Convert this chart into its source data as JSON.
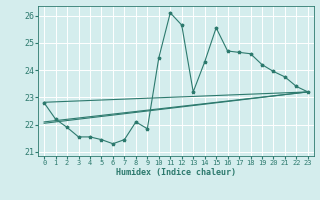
{
  "title": "",
  "xlabel": "Humidex (Indice chaleur)",
  "ylabel": "",
  "bg_color": "#d4eded",
  "grid_color": "#b8d8d8",
  "line_color": "#2d7a6e",
  "xlim": [
    -0.5,
    23.5
  ],
  "ylim": [
    20.85,
    26.35
  ],
  "yticks": [
    21,
    22,
    23,
    24,
    25,
    26
  ],
  "xticks": [
    0,
    1,
    2,
    3,
    4,
    5,
    6,
    7,
    8,
    9,
    10,
    11,
    12,
    13,
    14,
    15,
    16,
    17,
    18,
    19,
    20,
    21,
    22,
    23
  ],
  "main_x": [
    0,
    1,
    2,
    3,
    4,
    5,
    6,
    7,
    8,
    9,
    10,
    11,
    12,
    13,
    14,
    15,
    16,
    17,
    18,
    19,
    20,
    21,
    22,
    23
  ],
  "main_y": [
    22.8,
    22.2,
    21.9,
    21.55,
    21.55,
    21.45,
    21.3,
    21.45,
    22.1,
    21.85,
    24.45,
    26.1,
    25.65,
    23.2,
    24.3,
    25.55,
    24.7,
    24.65,
    24.6,
    24.2,
    23.95,
    23.75,
    23.4,
    23.2
  ],
  "line1_x": [
    0,
    23
  ],
  "line1_y": [
    22.82,
    23.2
  ],
  "line2_x": [
    0,
    23
  ],
  "line2_y": [
    22.1,
    23.2
  ],
  "line3_x": [
    0,
    23
  ],
  "line3_y": [
    22.05,
    23.2
  ]
}
